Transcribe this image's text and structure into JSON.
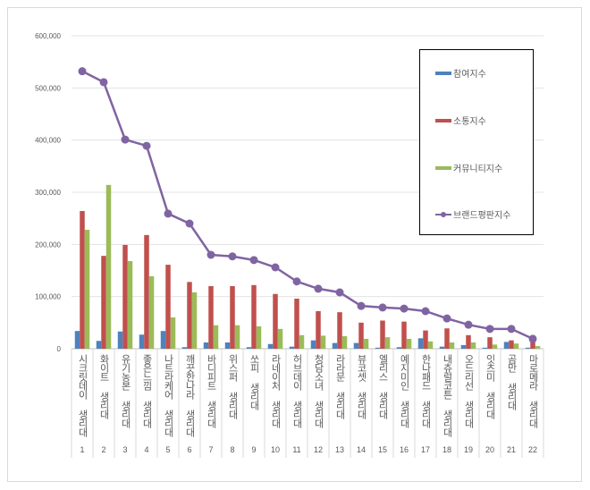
{
  "chart_data": {
    "type": "bar",
    "categories": [
      "시크릿데이 생리대",
      "화이트 생리대",
      "유기농본 생리대",
      "좋은느낌 생리대",
      "나트라케어 생리대",
      "깨끗한나라 생리대",
      "바디피트 생리대",
      "위스퍼 생리대",
      "쏘피 생리대",
      "라네이처 생리대",
      "허브데이 생리대",
      "청담소녀 생리대",
      "라라문 생리대",
      "뷰코셋 생리대",
      "엘리스 생리대",
      "예지미인 생리대",
      "한나패드 생리대",
      "내츄럴코튼 생리대",
      "오드리선 생리대",
      "잇츠미 생리대",
      "곰만 생리대",
      "마로메라 생리대"
    ],
    "category_numbers": [
      "1",
      "2",
      "3",
      "4",
      "5",
      "6",
      "7",
      "8",
      "9",
      "10",
      "11",
      "12",
      "13",
      "14",
      "15",
      "16",
      "17",
      "18",
      "19",
      "20",
      "21",
      "22"
    ],
    "series": [
      {
        "name": "참여지수",
        "type": "bar",
        "color": "#4F81BD",
        "values": [
          34000,
          15000,
          33000,
          27000,
          34000,
          3000,
          12000,
          12000,
          3000,
          9000,
          4000,
          16000,
          11000,
          11000,
          2000,
          3000,
          20000,
          4000,
          7000,
          2000,
          13000,
          2000
        ]
      },
      {
        "name": "소통지수",
        "type": "bar",
        "color": "#C0504D",
        "values": [
          264000,
          178000,
          199000,
          218000,
          161000,
          128000,
          120000,
          120000,
          122000,
          105000,
          96000,
          72000,
          70000,
          50000,
          54000,
          52000,
          35000,
          39000,
          26000,
          22000,
          16000,
          16000
        ]
      },
      {
        "name": "커뮤니티지수",
        "type": "bar",
        "color": "#9BBB59",
        "values": [
          228000,
          314000,
          168000,
          139000,
          60000,
          108000,
          45000,
          45000,
          43000,
          38000,
          26000,
          25000,
          24000,
          19000,
          22000,
          19000,
          14000,
          12000,
          12000,
          8000,
          10000,
          5000
        ]
      },
      {
        "name": "브랜드평판지수",
        "type": "line",
        "color": "#8064A2",
        "values": [
          532000,
          511000,
          401000,
          389000,
          259000,
          240000,
          180000,
          177000,
          170000,
          156000,
          129000,
          115000,
          108000,
          82000,
          79000,
          77000,
          72000,
          58000,
          46000,
          38000,
          38000,
          19000
        ]
      }
    ],
    "yticks": [
      "0",
      "100,000",
      "200,000",
      "300,000",
      "400,000",
      "500,000",
      "600,000"
    ],
    "ylim": [
      0,
      600000
    ],
    "grid": true,
    "legend": "right"
  }
}
